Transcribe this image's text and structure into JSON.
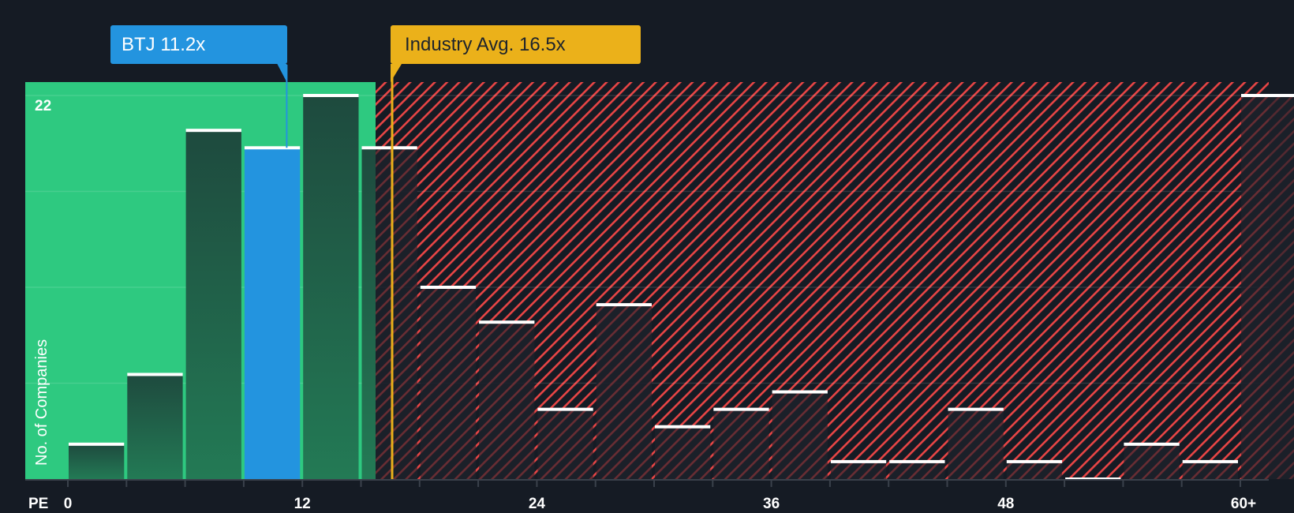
{
  "chart_data": {
    "type": "bar",
    "title": "",
    "xlabel": "PE",
    "ylabel": "No. of Companies",
    "x_tick_labels": [
      "0",
      "12",
      "24",
      "36",
      "48",
      "60+"
    ],
    "y_tick_labels": [
      "22"
    ],
    "ylim": [
      0,
      22
    ],
    "bin_width": 3,
    "categories": [
      "0-3",
      "3-6",
      "6-9",
      "9-12",
      "12-15",
      "15-18",
      "18-21",
      "21-24",
      "24-27",
      "27-30",
      "30-33",
      "33-36",
      "36-39",
      "39-42",
      "42-45",
      "45-48",
      "48-51",
      "51-54",
      "54-57",
      "57-60",
      "60+"
    ],
    "values": [
      2,
      6,
      20,
      19,
      22,
      19,
      11,
      9,
      4,
      10,
      3,
      4,
      5,
      1,
      1,
      4,
      1,
      0,
      2,
      1,
      22
    ],
    "highlight_bin": "9-12",
    "annotations": [
      {
        "label": "BTJ 11.2x",
        "value": 11.2,
        "color": "#2394df"
      },
      {
        "label": "Industry Avg. 16.5x",
        "value": 16.5,
        "color": "#ebb11a"
      }
    ],
    "regions": [
      {
        "name": "undervalued",
        "from": 0,
        "to": 16.5,
        "color": "#2ec980"
      },
      {
        "name": "overvalued",
        "from": 16.5,
        "to": 62.5,
        "color": "#e84545",
        "pattern": "diagonal-hatch"
      }
    ],
    "grid": true,
    "legend": null
  },
  "labels": {
    "company": "BTJ 11.2x",
    "industry": "Industry Avg. 16.5x",
    "x_axis": "PE",
    "y_axis": "No. of Companies",
    "y_max": "22"
  },
  "colors": {
    "background": "#151b24",
    "green": "#2ec980",
    "blue": "#2394df",
    "gold": "#ebb11a",
    "red": "#e84545",
    "bar_dark_green": "#1f4d40",
    "bar_dark": "#1c202a"
  }
}
